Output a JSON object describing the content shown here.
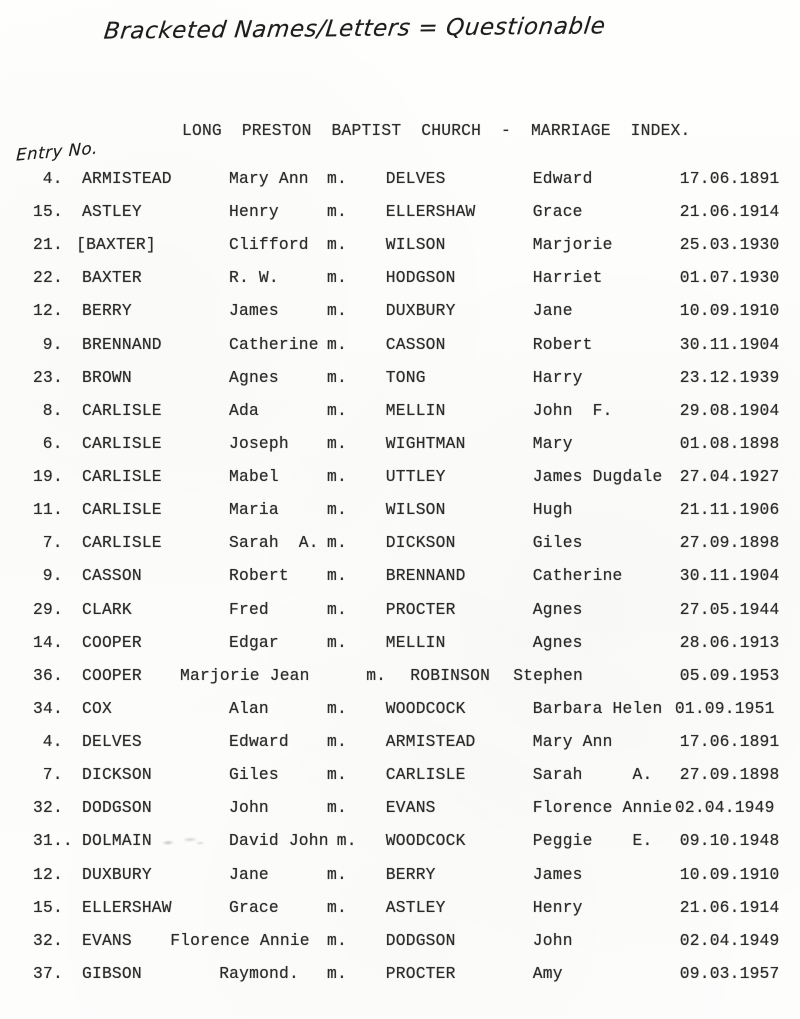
{
  "page": {
    "background": "#fcfcfa",
    "ink_color": "#2e2e2e",
    "handwriting_color": "#1d1d1d"
  },
  "handwritten": {
    "top_note": "Bracketed Names/Letters = Questionable",
    "entry_no_label": "Entry No."
  },
  "title": "LONG  PRESTON  BAPTIST  CHURCH  -  MARRIAGE  INDEX.",
  "index": {
    "mark_label": "m.",
    "columns": {
      "entry": 0,
      "surname": 5,
      "forename": 20,
      "mark": 30,
      "spouse_surname": 36,
      "spouse_forename": 51,
      "date": 66
    },
    "rows": [
      {
        "entry": "4.",
        "surname": "ARMISTEAD",
        "forename": "Mary Ann",
        "spouse_surname": "DELVES",
        "spouse_forename": "Edward",
        "date": "17.06.1891",
        "cols": {
          "entry": 1
        }
      },
      {
        "entry": "15.",
        "surname": "ASTLEY",
        "forename": "Henry",
        "spouse_surname": "ELLERSHAW",
        "spouse_forename": "Grace",
        "date": "21.06.1914"
      },
      {
        "entry": "21.",
        "surname": "[BAXTER]",
        "forename": "Clifford",
        "spouse_surname": "WILSON",
        "spouse_forename": "Marjorie",
        "date": "25.03.1930",
        "cols": {
          "surname": 4.4
        }
      },
      {
        "entry": "22.",
        "surname": "BAXTER",
        "forename": "R. W.",
        "spouse_surname": "HODGSON",
        "spouse_forename": "Harriet",
        "date": "01.07.1930"
      },
      {
        "entry": "12.",
        "surname": "BERRY",
        "forename": "James",
        "spouse_surname": "DUXBURY",
        "spouse_forename": "Jane",
        "date": "10.09.1910"
      },
      {
        "entry": "9.",
        "surname": "BRENNAND",
        "forename": "Catherine",
        "spouse_surname": "CASSON",
        "spouse_forename": "Robert",
        "date": "30.11.1904",
        "cols": {
          "entry": 1
        }
      },
      {
        "entry": "23.",
        "surname": "BROWN",
        "forename": "Agnes",
        "spouse_surname": "TONG",
        "spouse_forename": "Harry",
        "date": "23.12.1939"
      },
      {
        "entry": "8.",
        "surname": "CARLISLE",
        "forename": "Ada",
        "spouse_surname": "MELLIN",
        "spouse_forename": "John  F.",
        "date": "29.08.1904",
        "cols": {
          "entry": 1
        }
      },
      {
        "entry": "6.",
        "surname": "CARLISLE",
        "forename": "Joseph",
        "spouse_surname": "WIGHTMAN",
        "spouse_forename": "Mary",
        "date": "01.08.1898",
        "cols": {
          "entry": 1
        }
      },
      {
        "entry": "19.",
        "surname": "CARLISLE",
        "forename": "Mabel",
        "spouse_surname": "UTTLEY",
        "spouse_forename": "James Dugdale",
        "date": "27.04.1927"
      },
      {
        "entry": "11.",
        "surname": "CARLISLE",
        "forename": "Maria",
        "spouse_surname": "WILSON",
        "spouse_forename": "Hugh",
        "date": "21.11.1906"
      },
      {
        "entry": "7.",
        "surname": "CARLISLE",
        "forename": "Sarah  A.",
        "spouse_surname": "DICKSON",
        "spouse_forename": "Giles",
        "date": "27.09.1898",
        "cols": {
          "entry": 1
        }
      },
      {
        "entry": "9.",
        "surname": "CASSON",
        "forename": "Robert",
        "spouse_surname": "BRENNAND",
        "spouse_forename": "Catherine",
        "date": "30.11.1904",
        "cols": {
          "entry": 1
        }
      },
      {
        "entry": "29.",
        "surname": "CLARK",
        "forename": "Fred",
        "spouse_surname": "PROCTER",
        "spouse_forename": "Agnes",
        "date": "27.05.1944"
      },
      {
        "entry": "14.",
        "surname": "COOPER",
        "forename": "Edgar",
        "spouse_surname": "MELLIN",
        "spouse_forename": "Agnes",
        "date": "28.06.1913"
      },
      {
        "entry": "36.",
        "surname": "COOPER",
        "forename": "Marjorie Jean",
        "spouse_surname": "ROBINSON",
        "spouse_forename": "Stephen",
        "date": "05.09.1953",
        "cols": {
          "forename": 15,
          "mark": 34,
          "spouse_surname": 38.5,
          "spouse_forename": 49
        }
      },
      {
        "entry": "34.",
        "surname": "COX",
        "forename": "Alan",
        "spouse_surname": "WOODCOCK",
        "spouse_forename": "Barbara Helen",
        "date": "01.09.1951",
        "cols": {
          "date": 65.5
        }
      },
      {
        "entry": "4.",
        "surname": "DELVES",
        "forename": "Edward",
        "spouse_surname": "ARMISTEAD",
        "spouse_forename": "Mary Ann",
        "date": "17.06.1891",
        "cols": {
          "entry": 1
        }
      },
      {
        "entry": "7.",
        "surname": "DICKSON",
        "forename": "Giles",
        "spouse_surname": "CARLISLE",
        "spouse_forename": "Sarah     A.",
        "date": "27.09.1898",
        "cols": {
          "entry": 1
        }
      },
      {
        "entry": "32.",
        "surname": "DODGSON",
        "forename": "John",
        "spouse_surname": "EVANS",
        "spouse_forename": "Florence Annie",
        "date": "02.04.1949",
        "cols": {
          "date": 65.5
        }
      },
      {
        "entry": "31..",
        "surname": "DOLMAIN",
        "forename": "David John",
        "spouse_surname": "WOODCOCK",
        "spouse_forename": "Peggie    E.",
        "date": "09.10.1948",
        "cols": {
          "mark": 31
        }
      },
      {
        "entry": "12.",
        "surname": "DUXBURY",
        "forename": "Jane",
        "spouse_surname": "BERRY",
        "spouse_forename": "James",
        "date": "10.09.1910"
      },
      {
        "entry": "15.",
        "surname": "ELLERSHAW",
        "forename": "Grace",
        "spouse_surname": "ASTLEY",
        "spouse_forename": "Henry",
        "date": "21.06.1914"
      },
      {
        "entry": "32.",
        "surname": "EVANS",
        "forename": "Florence Annie",
        "spouse_surname": "DODGSON",
        "spouse_forename": "John",
        "date": "02.04.1949",
        "cols": {
          "forename": 14
        }
      },
      {
        "entry": "37.",
        "surname": "GIBSON",
        "forename": "Raymond.",
        "spouse_surname": "PROCTER",
        "spouse_forename": "Amy",
        "date": "09.03.1957",
        "cols": {
          "forename": 19
        }
      }
    ]
  }
}
